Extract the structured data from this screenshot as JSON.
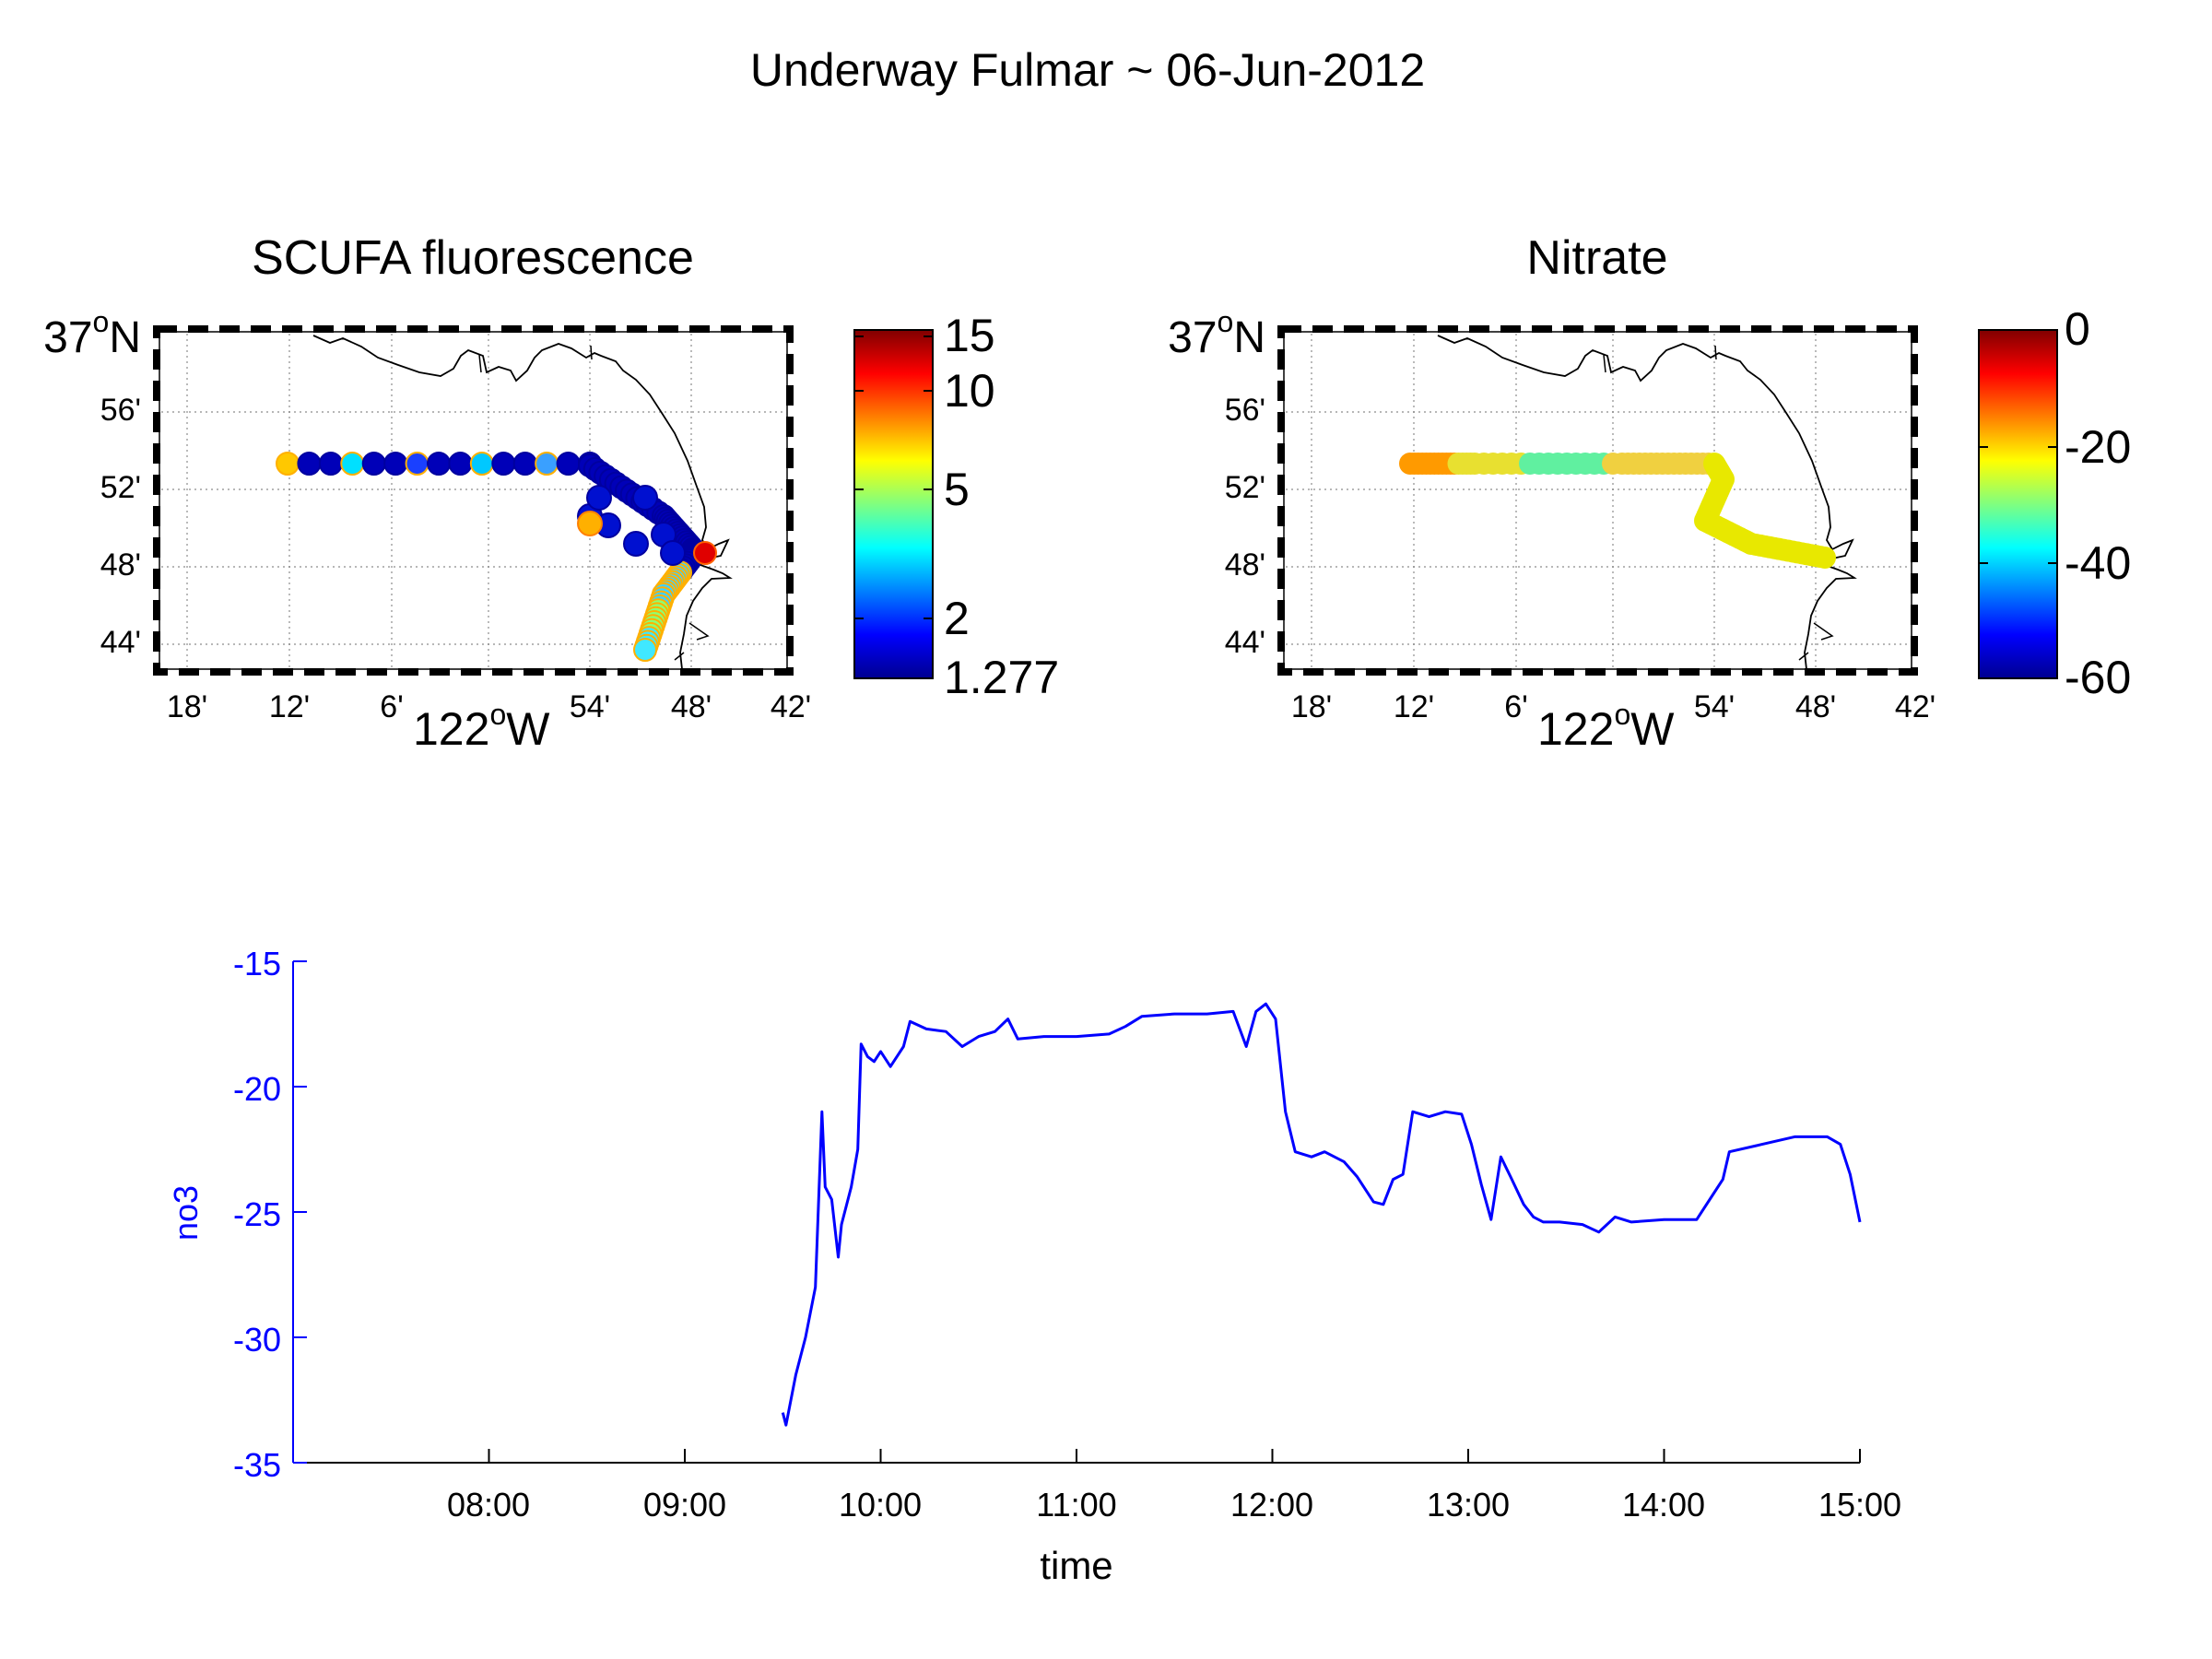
{
  "figure": {
    "title": "Underway Fulmar ~ 06-Jun-2012"
  },
  "maps": [
    {
      "title": "SCUFA fluorescence",
      "lat_top": {
        "deg": "37",
        "sup": "o",
        "hem": "N"
      },
      "lat_ticks": [
        "56'",
        "52'",
        "48'",
        "44'"
      ],
      "lon_ticks": [
        "18'",
        "12'",
        "6'",
        "54'",
        "48'",
        "42'"
      ],
      "lon_center": {
        "deg": "122",
        "sup": "o",
        "hem": "W"
      },
      "colorbar_labels": [
        "15",
        "10",
        "5",
        "2",
        "1.277"
      ],
      "colorbar_scale": "log",
      "colorbar_range": [
        1.277,
        15
      ]
    },
    {
      "title": "Nitrate",
      "lat_top": {
        "deg": "37",
        "sup": "o",
        "hem": "N"
      },
      "lat_ticks": [
        "56'",
        "52'",
        "48'",
        "44'"
      ],
      "lon_ticks": [
        "18'",
        "12'",
        "6'",
        "54'",
        "48'",
        "42'"
      ],
      "lon_center": {
        "deg": "122",
        "sup": "o",
        "hem": "W"
      },
      "colorbar_labels": [
        "0",
        "-20",
        "-40",
        "-60"
      ],
      "colorbar_scale": "linear",
      "colorbar_range": [
        -60,
        0
      ]
    }
  ],
  "colormap": "jet",
  "chart_data": {
    "type": "line",
    "series": [
      {
        "color": "#0000ff",
        "points": [
          [
            "09:30",
            -33.0
          ],
          [
            "09:31",
            -33.5
          ],
          [
            "09:34",
            -31.5
          ],
          [
            "09:37",
            -30.0
          ],
          [
            "09:40",
            -28.0
          ],
          [
            "09:42",
            -21.0
          ],
          [
            "09:43",
            -24.0
          ],
          [
            "09:45",
            -24.5
          ],
          [
            "09:47",
            -26.8
          ],
          [
            "09:48",
            -25.5
          ],
          [
            "09:51",
            -24.0
          ],
          [
            "09:53",
            -22.5
          ],
          [
            "09:54",
            -18.3
          ],
          [
            "09:56",
            -18.8
          ],
          [
            "09:58",
            -19.0
          ],
          [
            "10:00",
            -18.6
          ],
          [
            "10:03",
            -19.2
          ],
          [
            "10:07",
            -18.4
          ],
          [
            "10:09",
            -17.4
          ],
          [
            "10:14",
            -17.7
          ],
          [
            "10:20",
            -17.8
          ],
          [
            "10:25",
            -18.4
          ],
          [
            "10:30",
            -18.0
          ],
          [
            "10:35",
            -17.8
          ],
          [
            "10:39",
            -17.3
          ],
          [
            "10:42",
            -18.1
          ],
          [
            "10:50",
            -18.0
          ],
          [
            "11:00",
            -18.0
          ],
          [
            "11:10",
            -17.9
          ],
          [
            "11:15",
            -17.6
          ],
          [
            "11:20",
            -17.2
          ],
          [
            "11:30",
            -17.1
          ],
          [
            "11:40",
            -17.1
          ],
          [
            "11:48",
            -17.0
          ],
          [
            "11:52",
            -18.4
          ],
          [
            "11:55",
            -17.0
          ],
          [
            "11:58",
            -16.7
          ],
          [
            "12:01",
            -17.3
          ],
          [
            "12:04",
            -21.0
          ],
          [
            "12:07",
            -22.6
          ],
          [
            "12:12",
            -22.8
          ],
          [
            "12:16",
            -22.6
          ],
          [
            "12:22",
            -23.0
          ],
          [
            "12:26",
            -23.6
          ],
          [
            "12:31",
            -24.6
          ],
          [
            "12:34",
            -24.7
          ],
          [
            "12:37",
            -23.7
          ],
          [
            "12:40",
            -23.5
          ],
          [
            "12:43",
            -21.0
          ],
          [
            "12:48",
            -21.2
          ],
          [
            "12:53",
            -21.0
          ],
          [
            "12:58",
            -21.1
          ],
          [
            "13:01",
            -22.3
          ],
          [
            "13:04",
            -23.9
          ],
          [
            "13:07",
            -25.3
          ],
          [
            "13:10",
            -22.8
          ],
          [
            "13:13",
            -23.6
          ],
          [
            "13:17",
            -24.7
          ],
          [
            "13:20",
            -25.2
          ],
          [
            "13:23",
            -25.4
          ],
          [
            "13:28",
            -25.4
          ],
          [
            "13:35",
            -25.5
          ],
          [
            "13:40",
            -25.8
          ],
          [
            "13:45",
            -25.2
          ],
          [
            "13:50",
            -25.4
          ],
          [
            "14:00",
            -25.3
          ],
          [
            "14:10",
            -25.3
          ],
          [
            "14:15",
            -24.3
          ],
          [
            "14:18",
            -23.7
          ],
          [
            "14:20",
            -22.6
          ],
          [
            "14:30",
            -22.3
          ],
          [
            "14:40",
            -22.0
          ],
          [
            "14:50",
            -22.0
          ],
          [
            "14:54",
            -22.3
          ],
          [
            "14:57",
            -23.5
          ],
          [
            "15:00",
            -25.4
          ]
        ]
      }
    ],
    "xlabel": "time",
    "ylabel": "no3",
    "x_ticks": [
      "08:00",
      "09:00",
      "10:00",
      "11:00",
      "12:00",
      "13:00",
      "14:00",
      "15:00"
    ],
    "y_ticks": [
      "-15",
      "-20",
      "-25",
      "-30",
      "-35"
    ],
    "xlim": [
      "07:00",
      "15:00"
    ],
    "ylim": [
      -35,
      -15
    ],
    "grid": false
  }
}
